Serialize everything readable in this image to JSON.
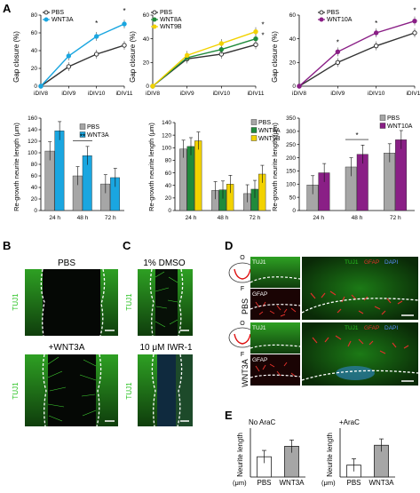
{
  "panel_letters": [
    "A",
    "B",
    "C",
    "D",
    "E"
  ],
  "colors": {
    "pbs_line": "#333333",
    "wnt3a": "#1aa6e0",
    "wnt8a": "#1f8a3b",
    "wnt9b": "#f2d200",
    "wnt10a": "#8a1f86",
    "pbs_bar": "#a6a6a6",
    "tuj1": "#27c11f",
    "gfap": "#e0302a",
    "dapi": "#2f6fff"
  },
  "labels": {
    "gap_closure_ylabel": "Gap closure (%)",
    "regrowth_ylabel": "Re-growth neurite length (μm)",
    "neurite_length_ylabel": "Neurite length",
    "unit_um": "(μm)",
    "tuj1": "TUJ1",
    "gfap": "GFAP",
    "dapi": "DAPI",
    "pbs": "PBS",
    "plus_wnt3a": "+WNT3A",
    "wnt3a": "WNT3A",
    "dmso": "1% DMSO",
    "iwr1": "10 μM IWR-1",
    "no_arac": "No AraC",
    "plus_arac": "+AraC",
    "section_o": "O",
    "section_f": "F"
  },
  "chart_data": [
    {
      "type": "line",
      "x": [
        "iDIV8",
        "iDIV9",
        "iDIV10",
        "iDIV11"
      ],
      "ylim": [
        0,
        80
      ],
      "yticks": [
        0,
        20,
        40,
        60,
        80
      ],
      "series": [
        {
          "name": "PBS",
          "values": [
            0,
            22,
            36,
            46
          ]
        },
        {
          "name": "WNT3A",
          "values": [
            0,
            34,
            56,
            70
          ]
        }
      ],
      "annotations": [
        "*",
        "*"
      ]
    },
    {
      "type": "line",
      "x": [
        "iDIV8",
        "iDIV9",
        "iDIV10",
        "iDIV11"
      ],
      "ylim": [
        0,
        60
      ],
      "yticks": [
        0,
        20,
        40,
        60
      ],
      "series": [
        {
          "name": "PBS",
          "values": [
            0,
            23,
            27,
            35
          ]
        },
        {
          "name": "WNT8A",
          "values": [
            0,
            24,
            31,
            40
          ]
        },
        {
          "name": "WNT9B",
          "values": [
            0,
            26,
            36,
            46
          ]
        }
      ],
      "annotations": [
        "*",
        "*"
      ]
    },
    {
      "type": "line",
      "x": [
        "iDIV8",
        "iDIV9",
        "iDIV10",
        "iDIV11"
      ],
      "ylim": [
        0,
        60
      ],
      "yticks": [
        0,
        20,
        40,
        60
      ],
      "series": [
        {
          "name": "PBS",
          "values": [
            0,
            20,
            34,
            45
          ]
        },
        {
          "name": "WNT10A",
          "values": [
            0,
            29,
            45,
            55
          ]
        }
      ],
      "annotations": [
        "*",
        "*",
        "*"
      ]
    },
    {
      "type": "bar",
      "categories": [
        "24 h",
        "48 h",
        "72 h"
      ],
      "ylim": [
        0,
        160
      ],
      "yticks": [
        0,
        20,
        40,
        60,
        80,
        100,
        120,
        140,
        160
      ],
      "series": [
        {
          "name": "PBS",
          "values": [
            103,
            60,
            46
          ]
        },
        {
          "name": "WNT3A",
          "values": [
            138,
            95,
            57
          ]
        }
      ],
      "annotations": [
        "**"
      ]
    },
    {
      "type": "bar",
      "categories": [
        "24 h",
        "48 h",
        "72 h"
      ],
      "ylim": [
        0,
        140
      ],
      "yticks": [
        0,
        20,
        40,
        60,
        80,
        100,
        120,
        140
      ],
      "series": [
        {
          "name": "PBS",
          "values": [
            98,
            32,
            27
          ]
        },
        {
          "name": "WNT8A",
          "values": [
            102,
            33,
            34
          ]
        },
        {
          "name": "WNT9B",
          "values": [
            111,
            42,
            58
          ]
        }
      ]
    },
    {
      "type": "bar",
      "categories": [
        "24 h",
        "48 h",
        "72 h"
      ],
      "ylim": [
        0,
        350
      ],
      "yticks": [
        0,
        50,
        100,
        150,
        200,
        250,
        300,
        350
      ],
      "series": [
        {
          "name": "PBS",
          "values": [
            97,
            165,
            218
          ]
        },
        {
          "name": "WNT10A",
          "values": [
            143,
            213,
            268
          ]
        }
      ],
      "annotations": [
        "*"
      ]
    },
    {
      "type": "bar",
      "title": "No AraC",
      "categories": [
        "PBS",
        "WNT3A"
      ],
      "values": [
        290,
        440
      ],
      "ylim": [
        0,
        700
      ]
    },
    {
      "type": "bar",
      "title": "+AraC",
      "categories": [
        "PBS",
        "WNT3A"
      ],
      "values": [
        195,
        520
      ],
      "ylim": [
        0,
        800
      ]
    }
  ]
}
